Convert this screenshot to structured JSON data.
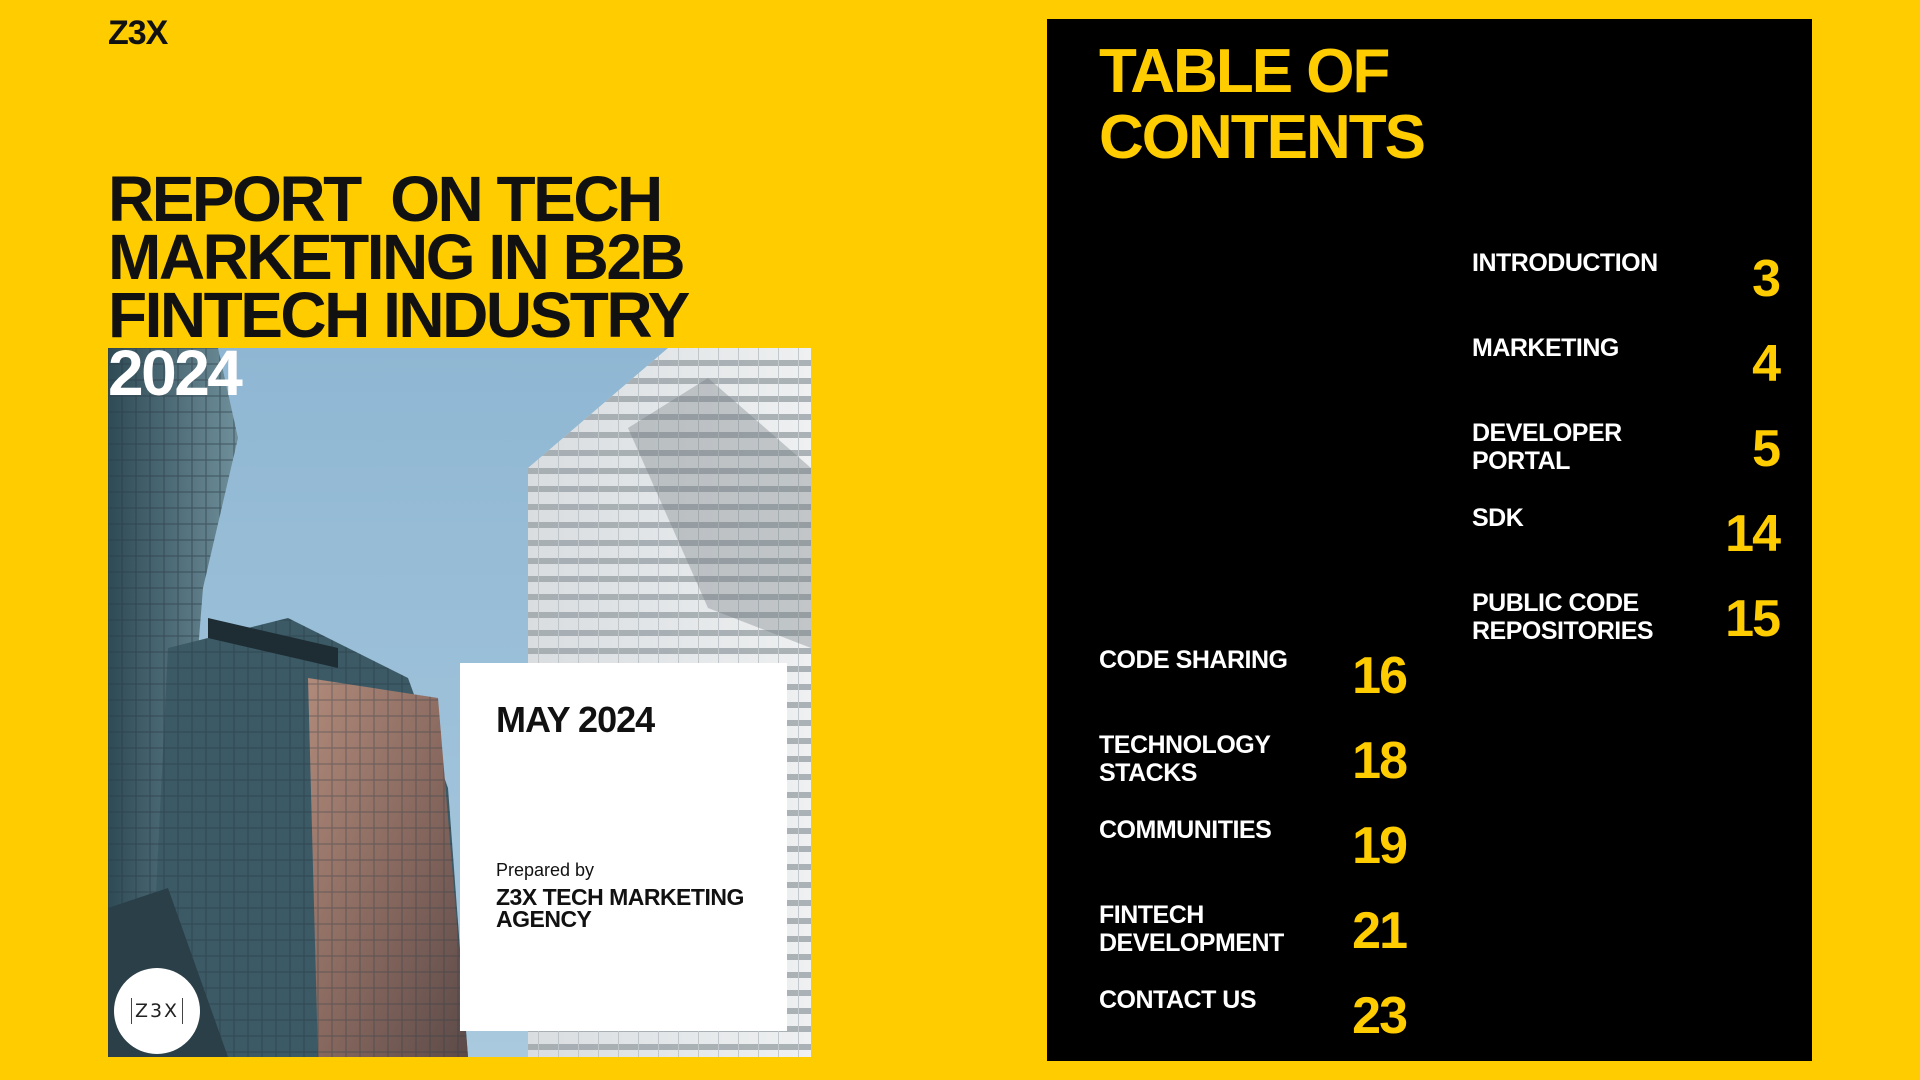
{
  "brand": "Z3X",
  "cover": {
    "title_lines": [
      "REPORT  ON TECH",
      "MARKETING IN B2B",
      "FINTECH INDUSTRY"
    ],
    "year": "2024",
    "date": "MAY 2024",
    "prepared_by": "Prepared by",
    "agency": "Z3X TECH MARKETING AGENCY",
    "badge": "Z3X"
  },
  "toc": {
    "title": "TABLE OF CONTENTS",
    "items": [
      {
        "label": "INTRODUCTION",
        "page": "3"
      },
      {
        "label": "MARKETING",
        "page": "4"
      },
      {
        "label": "DEVELOPER PORTAL",
        "page": "5"
      },
      {
        "label": "SDK",
        "page": "14"
      },
      {
        "label": "PUBLIC CODE REPOSITORIES",
        "page": "15"
      },
      {
        "label": "CODE SHARING",
        "page": "16"
      },
      {
        "label": "TECHNOLOGY STACKS",
        "page": "18"
      },
      {
        "label": "COMMUNITIES",
        "page": "19"
      },
      {
        "label": "FINTECH DEVELOPMENT",
        "page": "21"
      },
      {
        "label": "CONTACT US",
        "page": "23"
      }
    ]
  },
  "colors": {
    "background": "#FFCC00",
    "accent": "#FFCC00",
    "panel": "#000000",
    "text_dark": "#111111",
    "text_light": "#FFFFFF"
  }
}
